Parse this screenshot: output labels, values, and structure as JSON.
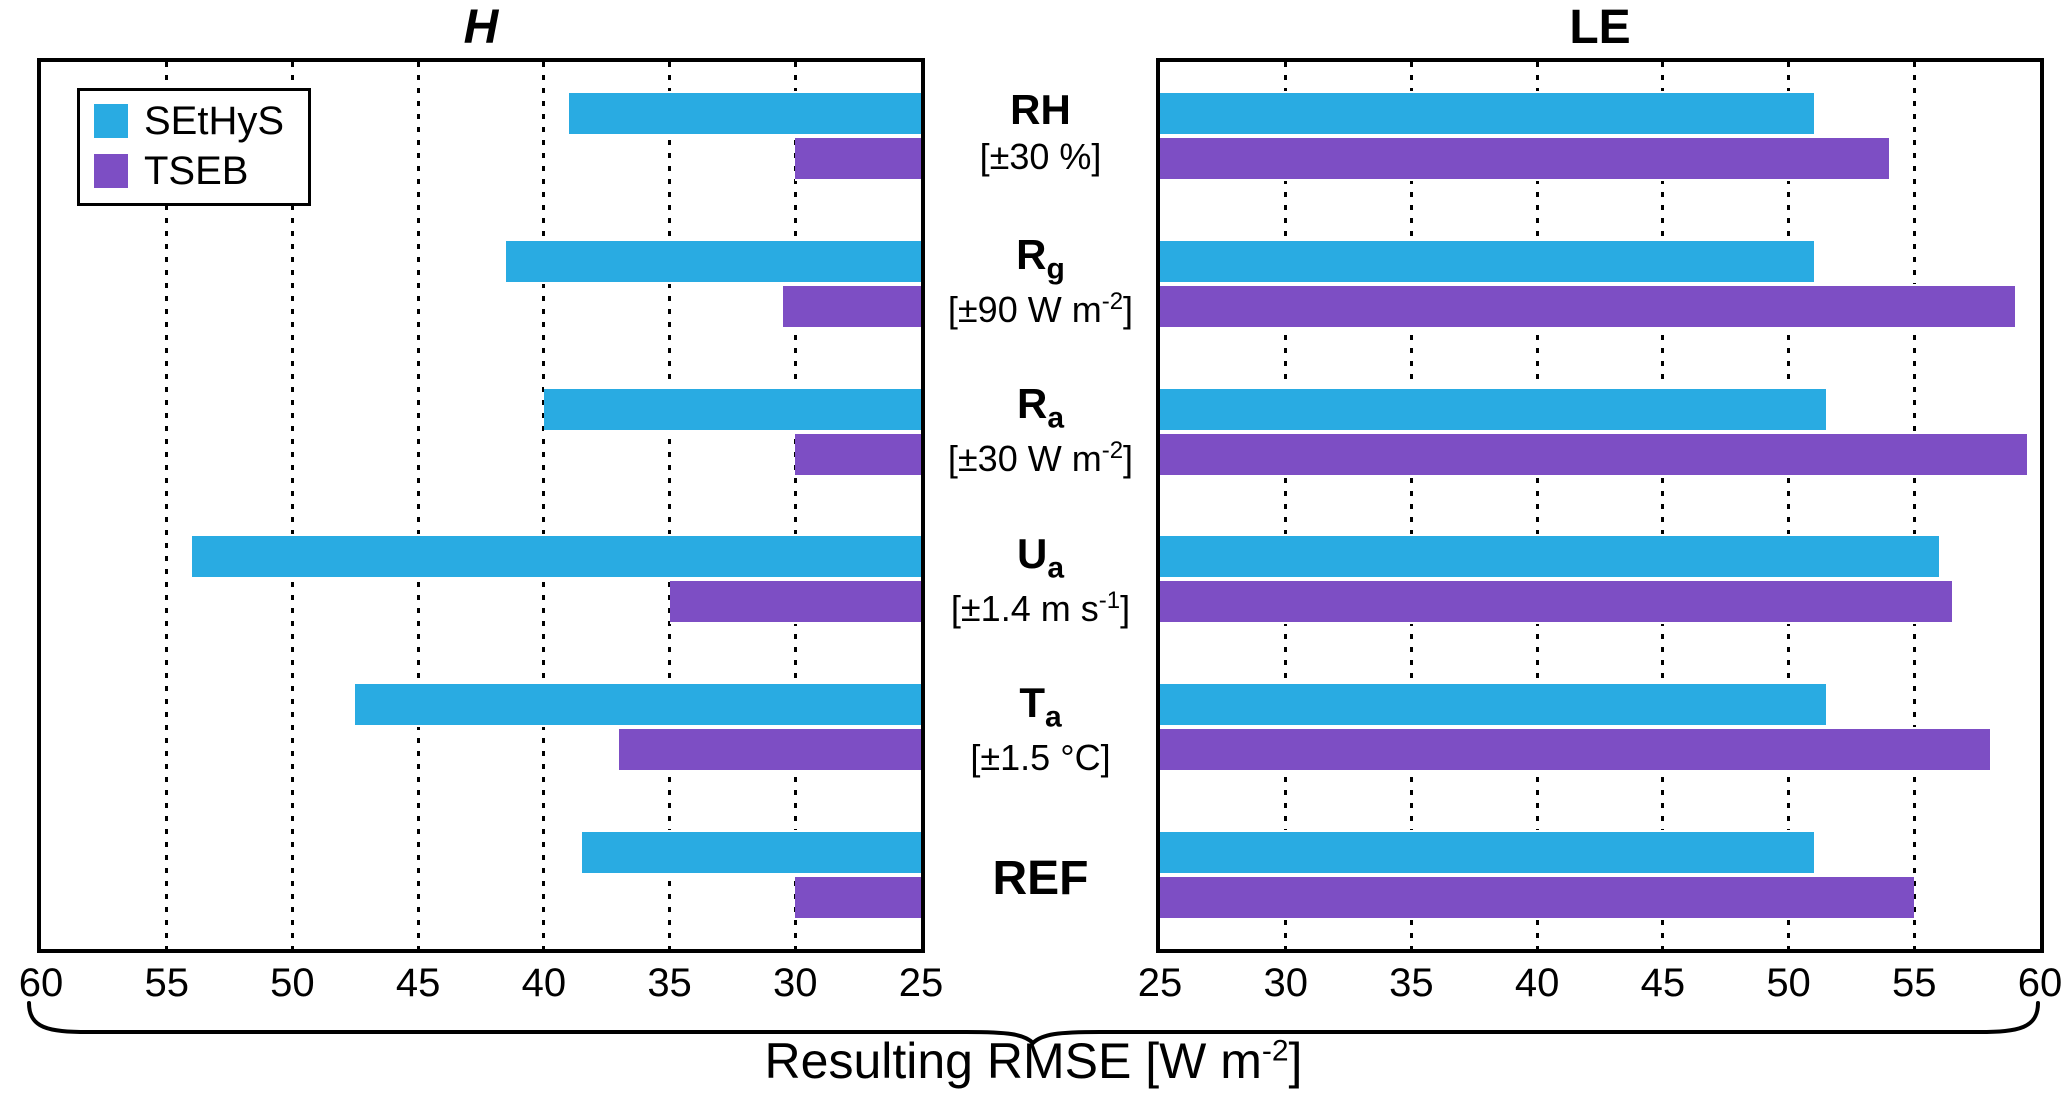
{
  "chart_data": {
    "type": "bar",
    "orientation": "horizontal",
    "xlabel_pre": "Resulting RMSE [W m",
    "xlabel_sup": "-2",
    "xlabel_post": "]",
    "categories": [
      {
        "main": "RH",
        "sub": "",
        "note_pre": "[±30 %]",
        "note_sup": "",
        "note_post": ""
      },
      {
        "main": "R",
        "sub": "g",
        "note_pre": "[±90 W m",
        "note_sup": "-2",
        "note_post": "]"
      },
      {
        "main": "R",
        "sub": "a",
        "note_pre": "[±30 W m",
        "note_sup": "-2",
        "note_post": "]"
      },
      {
        "main": "U",
        "sub": "a",
        "note_pre": "[±1.4 m s",
        "note_sup": "-1",
        "note_post": "]"
      },
      {
        "main": "T",
        "sub": "a",
        "note_pre": "[±1.5 °C]",
        "note_sup": "",
        "note_post": ""
      },
      {
        "main": "REF",
        "sub": "",
        "note_pre": "",
        "note_sup": "",
        "note_post": ""
      }
    ],
    "panels": [
      {
        "title": "H",
        "axis_min": 25,
        "axis_max": 60,
        "direction": "right-to-left",
        "ticks": [
          60,
          55,
          50,
          45,
          40,
          35,
          30,
          25
        ],
        "series": [
          {
            "name": "SEtHyS",
            "color": "#29ABE2",
            "values": [
              39,
              41.5,
              40,
              54,
              47.5,
              38.5
            ]
          },
          {
            "name": "TSEB",
            "color": "#7D4EC4",
            "values": [
              30,
              30.5,
              30,
              35,
              37,
              30
            ]
          }
        ]
      },
      {
        "title": "LE",
        "axis_min": 25,
        "axis_max": 60,
        "direction": "left-to-right",
        "ticks": [
          25,
          30,
          35,
          40,
          45,
          50,
          55,
          60
        ],
        "series": [
          {
            "name": "SEtHyS",
            "color": "#29ABE2",
            "values": [
              51,
              51,
              51.5,
              56,
              51.5,
              51
            ]
          },
          {
            "name": "TSEB",
            "color": "#7D4EC4",
            "values": [
              54,
              59,
              59.5,
              56.5,
              58,
              55
            ]
          }
        ]
      }
    ],
    "legend": {
      "items": [
        {
          "label": "SEtHyS",
          "color": "#29ABE2"
        },
        {
          "label": "TSEB",
          "color": "#7D4EC4"
        }
      ]
    },
    "grid": "dotted-vertical",
    "legend_position": "top-left-of-H-panel"
  }
}
